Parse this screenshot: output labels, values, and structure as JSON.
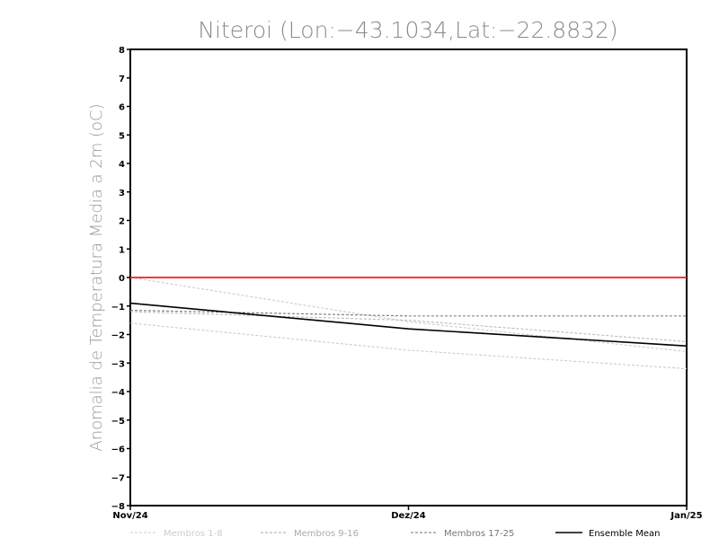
{
  "chart_data": {
    "type": "line",
    "title": "Niteroi (Lon:−43.1034,Lat:−22.8832)",
    "ylabel": "Anomalia de Temperatura Media a 2m (oC)",
    "xlabel": "",
    "ylim": [
      -8,
      8
    ],
    "yticks": [
      "8",
      "7",
      "6",
      "5",
      "4",
      "3",
      "2",
      "1",
      "0",
      "−1",
      "−2",
      "−3",
      "−4",
      "−5",
      "−6",
      "−7",
      "−8"
    ],
    "categories": [
      "Nov/24",
      "Dez/24",
      "Jan/25"
    ],
    "grid": false,
    "legend_position": "bottom",
    "reference_line": {
      "y": 0,
      "color": "#ff3333"
    },
    "series": [
      {
        "name": "Membros 1-8",
        "values": [
          0.0,
          -1.55,
          -2.6
        ],
        "color": "#cccccc",
        "style": "dashed"
      },
      {
        "name": "Membros 1-8",
        "values": [
          -1.6,
          -2.55,
          -3.2
        ],
        "color": "#cccccc",
        "style": "dashed"
      },
      {
        "name": "Membros 9-16",
        "values": [
          -1.2,
          -1.5,
          -2.25
        ],
        "color": "#bbbbbb",
        "style": "dashed"
      },
      {
        "name": "Membros 17-25",
        "values": [
          -1.15,
          -1.35,
          -1.35
        ],
        "color": "#777777",
        "style": "dashed"
      },
      {
        "name": "Ensemble Mean",
        "values": [
          -0.9,
          -1.8,
          -2.4
        ],
        "color": "#000000",
        "style": "solid"
      }
    ],
    "legend": [
      {
        "label": "Membros 1-8",
        "color": "#cccccc",
        "style": "dashed"
      },
      {
        "label": "Membros 9-16",
        "color": "#aaaaaa",
        "style": "dashed"
      },
      {
        "label": "Membros 17-25",
        "color": "#777777",
        "style": "dashed"
      },
      {
        "label": "Ensemble Mean",
        "color": "#000000",
        "style": "solid"
      }
    ]
  }
}
